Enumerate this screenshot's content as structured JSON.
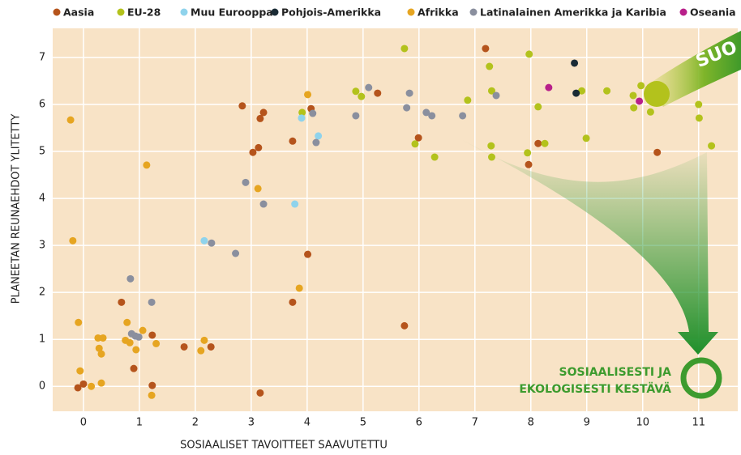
{
  "chart_data": {
    "type": "scatter",
    "xlabel": "SOSIAALISET TAVOITTEET SAAVUTETTU",
    "ylabel": "PLANEETAN REUNAEHDOT YLITETTY",
    "annotations": [
      "SUO",
      "SOSIAALISESTI JA",
      "EKOLOGISESTI KESTÄVÄ"
    ],
    "xlim": [
      -0.55,
      11.7
    ],
    "ylim": [
      -0.53,
      7.62
    ],
    "xticks": [
      0,
      1,
      2,
      3,
      4,
      5,
      6,
      7,
      8,
      9,
      10,
      11
    ],
    "yticks": [
      0,
      1,
      2,
      3,
      4,
      5,
      6,
      7
    ],
    "grid": true,
    "series": [
      {
        "name": "Aasia",
        "color": "#b5541c",
        "x": [
          2.84,
          3.22,
          3.16,
          3.13,
          3.03,
          3.74,
          4.07,
          5.26,
          5.99,
          7.19,
          8.13,
          7.96,
          10.26,
          4.01,
          3.74,
          5.74,
          0.68,
          1.23,
          1.8,
          2.28,
          0.9,
          0,
          -0.1,
          1.23,
          3.16
        ],
        "values": [
          5.97,
          5.83,
          5.7,
          5.08,
          4.98,
          5.22,
          5.91,
          6.24,
          5.29,
          7.19,
          5.17,
          4.72,
          4.98,
          2.81,
          1.79,
          1.29,
          1.79,
          1.09,
          0.84,
          0.84,
          0.38,
          0.05,
          -0.03,
          0.02,
          -0.14
        ]
      },
      {
        "name": "EU-28",
        "color": "#b3c21c",
        "x": [
          3.91,
          4.87,
          4.97,
          5.74,
          5.93,
          6.28,
          6.87,
          7.26,
          7.3,
          7.29,
          7.3,
          7.97,
          8.13,
          8.25,
          7.94,
          8.91,
          8.99,
          9.36,
          9.83,
          9.84,
          9.97,
          10.14,
          11,
          11.01,
          11.23
        ],
        "values": [
          5.83,
          6.28,
          6.17,
          7.19,
          5.16,
          4.88,
          6.09,
          6.81,
          6.29,
          5.12,
          4.88,
          7.07,
          5.95,
          5.17,
          4.97,
          6.29,
          5.28,
          6.29,
          6.19,
          5.93,
          6.4,
          5.84,
          6,
          5.71,
          5.12
        ]
      },
      {
        "name": "Muu Eurooppa",
        "color": "#8fd3ec",
        "x": [
          2.16,
          3.78,
          3.9,
          4.2
        ],
        "values": [
          3.1,
          3.88,
          5.71,
          5.33
        ]
      },
      {
        "name": "Pohjois-Amerikka",
        "color": "#1a2b35",
        "x": [
          8.78,
          8.81
        ],
        "values": [
          6.88,
          6.24
        ]
      },
      {
        "name": "Afrikka",
        "color": "#e6a521",
        "x": [
          -0.23,
          -0.19,
          -0.09,
          -0.06,
          0.14,
          0.32,
          0.26,
          0.35,
          0.28,
          0.32,
          0.75,
          0.83,
          0.78,
          0.94,
          1.06,
          1.3,
          1.22,
          1.13,
          2.16,
          2.1,
          3.12,
          3.86,
          4.01
        ],
        "values": [
          5.67,
          3.1,
          1.36,
          0.33,
          0,
          0.07,
          1.03,
          1.03,
          0.81,
          0.69,
          0.98,
          0.93,
          1.36,
          0.78,
          1.19,
          0.91,
          -0.19,
          4.71,
          0.98,
          0.76,
          4.21,
          2.09,
          6.21
        ]
      },
      {
        "name": "Latinalainen Amerikka ja Karibia",
        "color": "#8a8f9e",
        "x": [
          0.84,
          1.22,
          0.86,
          0.93,
          0.99,
          2.29,
          2.72,
          2.9,
          3.22,
          4.1,
          4.16,
          4.87,
          5.1,
          5.78,
          5.83,
          6.13,
          6.23,
          6.78,
          7.38
        ],
        "values": [
          2.29,
          1.79,
          1.12,
          1.07,
          1.05,
          3.05,
          2.83,
          4.34,
          3.88,
          5.81,
          5.19,
          5.76,
          6.36,
          5.93,
          6.24,
          5.83,
          5.76,
          5.76,
          6.19
        ]
      },
      {
        "name": "Oseania",
        "color": "#b8208a",
        "x": [
          8.32,
          9.94
        ],
        "values": [
          6.36,
          6.07
        ]
      }
    ]
  }
}
